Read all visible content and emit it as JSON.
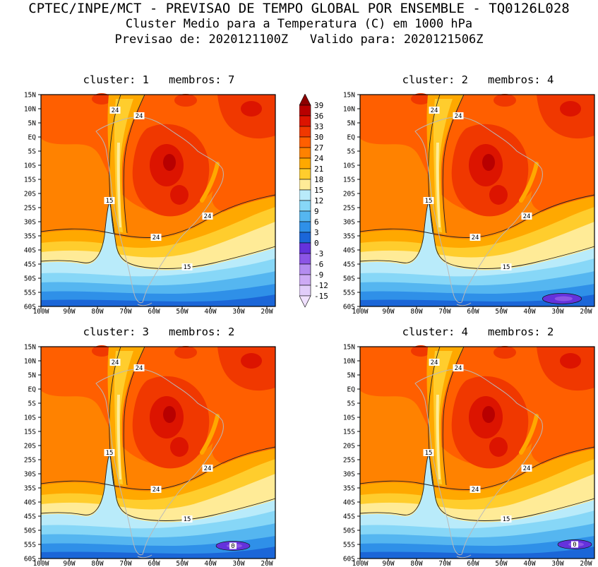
{
  "header": {
    "line1": "CPTEC/INPE/MCT - PREVISAO DE TEMPO GLOBAL POR ENSEMBLE - TQ0126L028",
    "line2": "Cluster Medio para a Temperatura (C) em 1000 hPa",
    "line3": "Previsao de: 2020121100Z   Valido para: 2020121506Z"
  },
  "panels": [
    {
      "title": "cluster: 1   membros: 7",
      "cluster": 1,
      "membros": 7
    },
    {
      "title": "cluster: 2   membros: 4",
      "cluster": 2,
      "membros": 4
    },
    {
      "title": "cluster: 3   membros: 2",
      "cluster": 3,
      "membros": 2
    },
    {
      "title": "cluster: 4   membros: 2",
      "cluster": 4,
      "membros": 2
    }
  ],
  "axes": {
    "lat": [
      "15N",
      "10N",
      "5N",
      "EQ",
      "5S",
      "10S",
      "15S",
      "20S",
      "25S",
      "30S",
      "35S",
      "40S",
      "45S",
      "50S",
      "55S",
      "60S"
    ],
    "lon": [
      "100W",
      "90W",
      "80W",
      "70W",
      "60W",
      "50W",
      "40W",
      "30W",
      "20W"
    ]
  },
  "colorbar": {
    "labels": [
      "39",
      "36",
      "33",
      "30",
      "27",
      "24",
      "21",
      "18",
      "15",
      "12",
      "9",
      "6",
      "3",
      "0",
      "-3",
      "-6",
      "-9",
      "-12",
      "-15"
    ],
    "colors": [
      "#8c0000",
      "#b80000",
      "#dc1400",
      "#f03800",
      "#ff5f00",
      "#ff8200",
      "#ffa800",
      "#ffcd2d",
      "#ffeb97",
      "#b9ebfa",
      "#87d7f7",
      "#55b6f0",
      "#2f90e8",
      "#1b66d8",
      "#6432dc",
      "#8c55e6",
      "#b48cf0",
      "#cdaaf5",
      "#e1cdfa",
      "#f0e1ff"
    ]
  },
  "contours": {
    "warm": "24",
    "mid": "15",
    "cold": "0"
  },
  "chart_data": {
    "type": "heatmap",
    "title": "Cluster Medio para a Temperatura (C) em 1000 hPa",
    "source": "CPTEC/INPE/MCT",
    "model": "TQ0126L028",
    "forecast_init": "2020121100Z",
    "forecast_valid": "2020121506Z",
    "variable": "Temperatura",
    "units": "C",
    "level_hPa": 1000,
    "x_ticks": [
      "100W",
      "90W",
      "80W",
      "70W",
      "60W",
      "50W",
      "40W",
      "30W",
      "20W"
    ],
    "y_ticks": [
      "15N",
      "10N",
      "5N",
      "EQ",
      "5S",
      "10S",
      "15S",
      "20S",
      "25S",
      "30S",
      "35S",
      "40S",
      "45S",
      "50S",
      "55S",
      "60S"
    ],
    "shade_levels": [
      39,
      36,
      33,
      30,
      27,
      24,
      21,
      18,
      15,
      12,
      9,
      6,
      3,
      0,
      -3,
      -6,
      -9,
      -12,
      -15
    ],
    "labeled_contours": [
      24,
      15,
      0
    ],
    "palette_top_to_bottom": [
      "#8c0000",
      "#b80000",
      "#dc1400",
      "#f03800",
      "#ff5f00",
      "#ff8200",
      "#ffa800",
      "#ffcd2d",
      "#ffeb97",
      "#b9ebfa",
      "#87d7f7",
      "#55b6f0",
      "#2f90e8",
      "#1b66d8",
      "#6432dc",
      "#8c55e6",
      "#b48cf0",
      "#cdaaf5",
      "#e1cdfa",
      "#f0e1ff"
    ],
    "panels": [
      {
        "cluster": 1,
        "members": 7
      },
      {
        "cluster": 2,
        "members": 4
      },
      {
        "cluster": 3,
        "members": 2
      },
      {
        "cluster": 4,
        "members": 2
      }
    ],
    "legend_position": "between top panels",
    "grid": false
  }
}
